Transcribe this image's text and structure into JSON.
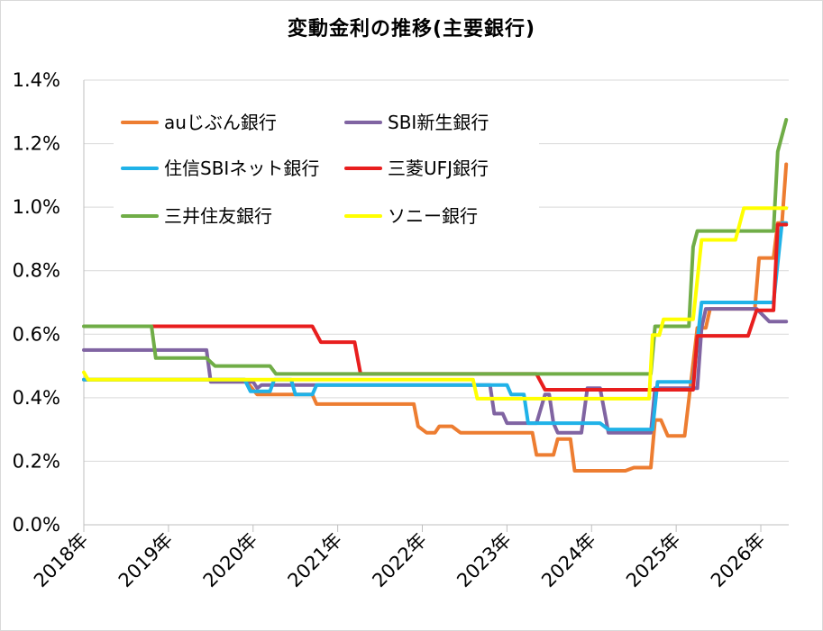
{
  "chart_data": {
    "type": "line",
    "title": "変動金利の推移(主要銀行)",
    "xlabel": "",
    "ylabel": "",
    "xlim": [
      2018.0,
      2026.33
    ],
    "ylim": [
      0.0,
      1.4
    ],
    "y_ticks": [
      "0.0%",
      "0.2%",
      "0.4%",
      "0.6%",
      "0.8%",
      "1.0%",
      "1.2%",
      "1.4%"
    ],
    "x_ticks": [
      "2018年",
      "2019年",
      "2020年",
      "2021年",
      "2022年",
      "2023年",
      "2024年",
      "2025年",
      "2026年"
    ],
    "grid": "horizontal",
    "legend_position": "top-left inside",
    "series": [
      {
        "name": "auじぶん銀行",
        "color": "#ED7D31",
        "points": [
          [
            2018.0,
            0.457
          ],
          [
            2019.0,
            0.457
          ],
          [
            2019.9,
            0.457
          ],
          [
            2020.05,
            0.41
          ],
          [
            2020.7,
            0.41
          ],
          [
            2020.75,
            0.38
          ],
          [
            2021.8,
            0.38
          ],
          [
            2021.9,
            0.38
          ],
          [
            2021.95,
            0.31
          ],
          [
            2022.05,
            0.29
          ],
          [
            2022.15,
            0.29
          ],
          [
            2022.2,
            0.31
          ],
          [
            2022.35,
            0.31
          ],
          [
            2022.45,
            0.29
          ],
          [
            2023.3,
            0.29
          ],
          [
            2023.35,
            0.22
          ],
          [
            2023.55,
            0.22
          ],
          [
            2023.6,
            0.27
          ],
          [
            2023.75,
            0.27
          ],
          [
            2023.8,
            0.17
          ],
          [
            2024.4,
            0.17
          ],
          [
            2024.5,
            0.18
          ],
          [
            2024.7,
            0.18
          ],
          [
            2024.75,
            0.33
          ],
          [
            2024.82,
            0.33
          ],
          [
            2024.9,
            0.28
          ],
          [
            2025.1,
            0.28
          ],
          [
            2025.25,
            0.62
          ],
          [
            2025.35,
            0.62
          ],
          [
            2025.4,
            0.68
          ],
          [
            2025.93,
            0.68
          ],
          [
            2025.98,
            0.84
          ],
          [
            2026.15,
            0.84
          ],
          [
            2026.2,
            0.95
          ],
          [
            2026.25,
            0.95
          ],
          [
            2026.3,
            1.135
          ]
        ]
      },
      {
        "name": "SBI新生銀行",
        "color": "#8064A2",
        "points": [
          [
            2018.0,
            0.55
          ],
          [
            2019.45,
            0.55
          ],
          [
            2019.5,
            0.45
          ],
          [
            2019.9,
            0.45
          ],
          [
            2020.0,
            0.45
          ],
          [
            2020.05,
            0.43
          ],
          [
            2020.1,
            0.44
          ],
          [
            2022.6,
            0.44
          ],
          [
            2022.8,
            0.44
          ],
          [
            2022.85,
            0.35
          ],
          [
            2022.95,
            0.35
          ],
          [
            2023.0,
            0.32
          ],
          [
            2023.35,
            0.32
          ],
          [
            2023.45,
            0.41
          ],
          [
            2023.5,
            0.41
          ],
          [
            2023.55,
            0.32
          ],
          [
            2023.6,
            0.29
          ],
          [
            2023.85,
            0.29
          ],
          [
            2023.88,
            0.29
          ],
          [
            2023.95,
            0.43
          ],
          [
            2024.1,
            0.43
          ],
          [
            2024.2,
            0.29
          ],
          [
            2024.45,
            0.29
          ],
          [
            2024.7,
            0.29
          ],
          [
            2024.75,
            0.43
          ],
          [
            2025.25,
            0.43
          ],
          [
            2025.3,
            0.62
          ],
          [
            2025.35,
            0.68
          ],
          [
            2025.95,
            0.68
          ],
          [
            2026.1,
            0.64
          ],
          [
            2026.3,
            0.64
          ]
        ]
      },
      {
        "name": "住信SBIネット銀行",
        "color": "#20B2E8",
        "points": [
          [
            2018.0,
            0.457
          ],
          [
            2019.9,
            0.457
          ],
          [
            2019.97,
            0.42
          ],
          [
            2020.2,
            0.42
          ],
          [
            2020.25,
            0.457
          ],
          [
            2020.45,
            0.457
          ],
          [
            2020.5,
            0.41
          ],
          [
            2020.7,
            0.41
          ],
          [
            2020.75,
            0.44
          ],
          [
            2023.0,
            0.44
          ],
          [
            2023.05,
            0.41
          ],
          [
            2023.2,
            0.41
          ],
          [
            2023.25,
            0.32
          ],
          [
            2023.85,
            0.32
          ],
          [
            2024.1,
            0.32
          ],
          [
            2024.2,
            0.3
          ],
          [
            2024.65,
            0.3
          ],
          [
            2024.72,
            0.3
          ],
          [
            2024.78,
            0.45
          ],
          [
            2025.2,
            0.45
          ],
          [
            2025.3,
            0.7
          ],
          [
            2025.95,
            0.7
          ],
          [
            2026.1,
            0.7
          ],
          [
            2026.15,
            0.7
          ],
          [
            2026.25,
            0.95
          ],
          [
            2026.3,
            0.95
          ]
        ]
      },
      {
        "name": "三菱UFJ銀行",
        "color": "#E81E1E",
        "points": [
          [
            2018.8,
            0.625
          ],
          [
            2020.7,
            0.625
          ],
          [
            2020.8,
            0.575
          ],
          [
            2021.2,
            0.575
          ],
          [
            2021.27,
            0.475
          ],
          [
            2023.35,
            0.475
          ],
          [
            2023.45,
            0.425
          ],
          [
            2024.85,
            0.425
          ],
          [
            2025.2,
            0.425
          ],
          [
            2025.25,
            0.595
          ],
          [
            2025.85,
            0.595
          ],
          [
            2025.95,
            0.675
          ],
          [
            2026.15,
            0.675
          ],
          [
            2026.2,
            0.945
          ],
          [
            2026.3,
            0.945
          ]
        ]
      },
      {
        "name": "三井住友銀行",
        "color": "#70AD47",
        "points": [
          [
            2018.0,
            0.625
          ],
          [
            2018.8,
            0.625
          ],
          [
            2018.85,
            0.525
          ],
          [
            2019.45,
            0.525
          ],
          [
            2019.55,
            0.5
          ],
          [
            2020.2,
            0.5
          ],
          [
            2020.27,
            0.475
          ],
          [
            2024.62,
            0.475
          ],
          [
            2024.7,
            0.475
          ],
          [
            2024.75,
            0.625
          ],
          [
            2025.15,
            0.625
          ],
          [
            2025.2,
            0.875
          ],
          [
            2025.25,
            0.925
          ],
          [
            2026.15,
            0.925
          ],
          [
            2026.2,
            1.175
          ],
          [
            2026.3,
            1.275
          ]
        ]
      },
      {
        "name": "ソニー銀行",
        "color": "#FFFF00",
        "points": [
          [
            2018.0,
            0.48
          ],
          [
            2018.05,
            0.457
          ],
          [
            2022.6,
            0.457
          ],
          [
            2022.65,
            0.397
          ],
          [
            2024.62,
            0.397
          ],
          [
            2024.68,
            0.397
          ],
          [
            2024.72,
            0.597
          ],
          [
            2024.8,
            0.597
          ],
          [
            2024.85,
            0.647
          ],
          [
            2025.2,
            0.647
          ],
          [
            2025.3,
            0.897
          ],
          [
            2025.7,
            0.897
          ],
          [
            2025.8,
            0.997
          ],
          [
            2026.3,
            0.997
          ]
        ]
      }
    ]
  }
}
